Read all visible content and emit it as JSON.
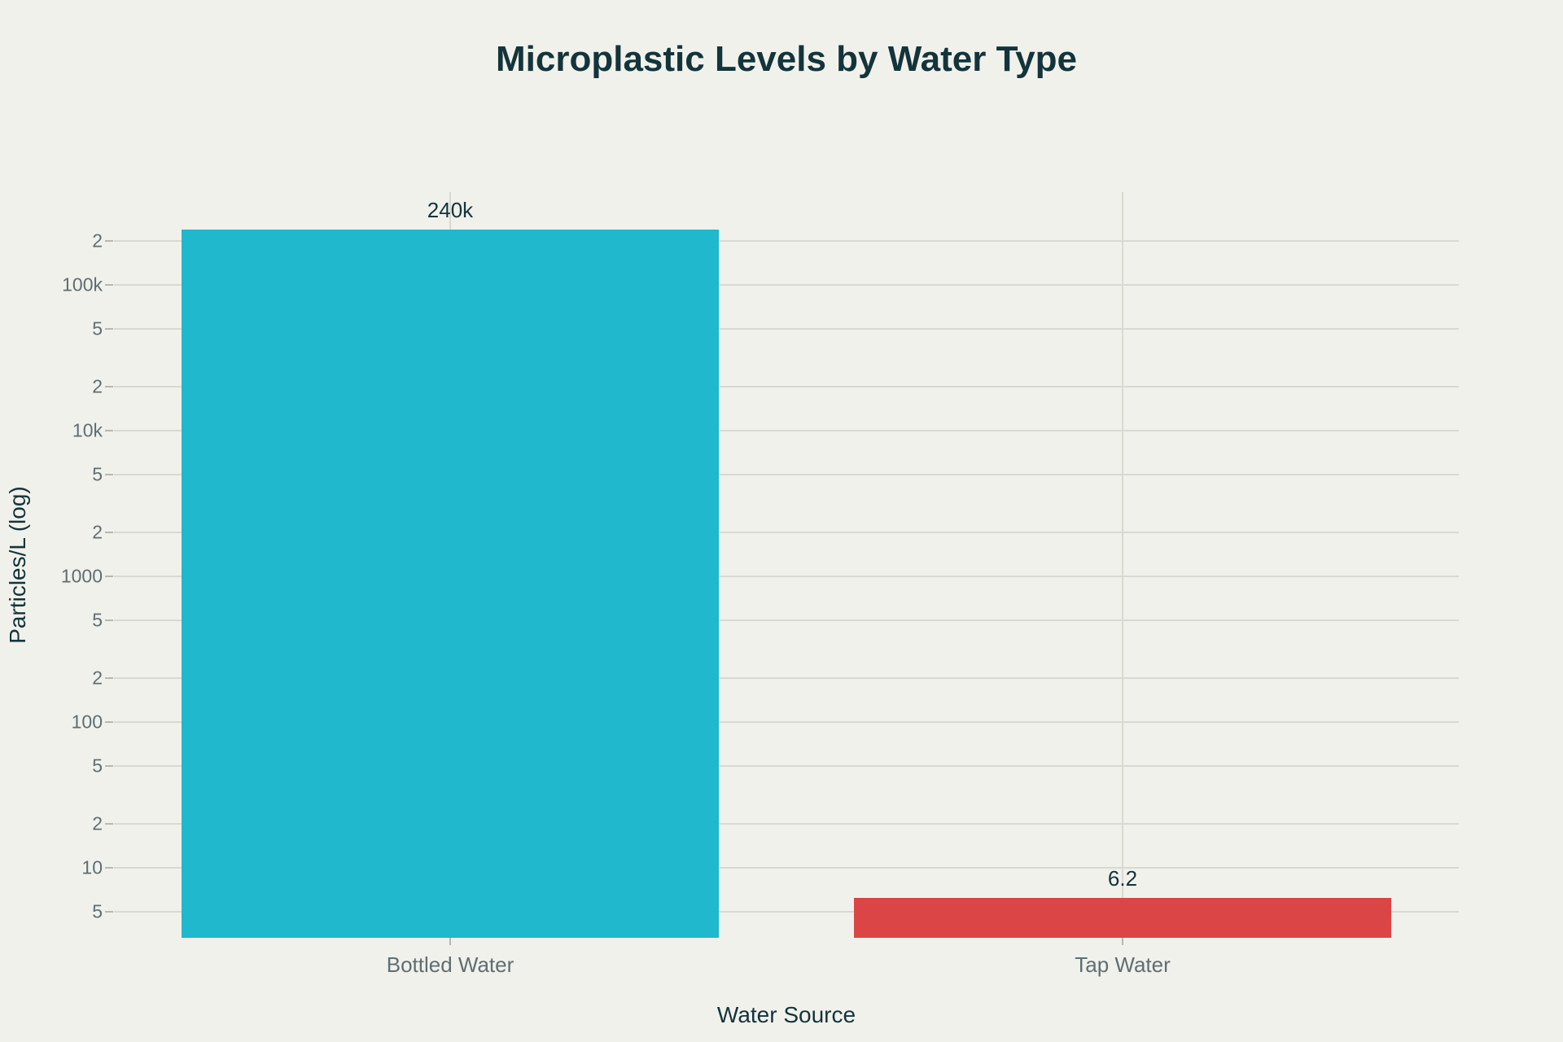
{
  "chart_data": {
    "type": "bar",
    "title": "Microplastic Levels by Water Type",
    "xlabel": "Water Source",
    "ylabel": "Particles/L (log)",
    "yscale": "log",
    "ylim": [
      3.3,
      433000
    ],
    "grid": true,
    "legend": false,
    "categories": [
      "Bottled Water",
      "Tap Water"
    ],
    "values": [
      240000,
      6.2
    ],
    "value_labels": [
      "240k",
      "6.2"
    ],
    "bar_colors": [
      "#1FB8CD",
      "#DB4545"
    ],
    "yticks": [
      {
        "value": 5,
        "label": "5"
      },
      {
        "value": 10,
        "label": "10"
      },
      {
        "value": 20,
        "label": "2"
      },
      {
        "value": 50,
        "label": "5"
      },
      {
        "value": 100,
        "label": "100"
      },
      {
        "value": 200,
        "label": "2"
      },
      {
        "value": 500,
        "label": "5"
      },
      {
        "value": 1000,
        "label": "1000"
      },
      {
        "value": 2000,
        "label": "2"
      },
      {
        "value": 5000,
        "label": "5"
      },
      {
        "value": 10000,
        "label": "10k"
      },
      {
        "value": 20000,
        "label": "2"
      },
      {
        "value": 50000,
        "label": "5"
      },
      {
        "value": 100000,
        "label": "100k"
      },
      {
        "value": 200000,
        "label": "2"
      }
    ]
  },
  "colors": {
    "background": "#F1F1EB",
    "gridline": "#D9D9D1",
    "tick_dash": "#B8B8B0",
    "tick_text": "#5E6E73",
    "dark_text": "#13343B",
    "teal": "#1FB8CD",
    "red": "#DB4545"
  }
}
